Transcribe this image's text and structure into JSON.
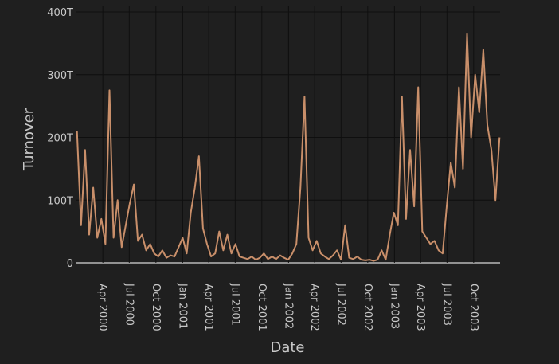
{
  "chart_data": {
    "type": "line",
    "title": "",
    "xlabel": "Date",
    "ylabel": "Turnover",
    "x_ticks": [
      "Apr 2000",
      "Jul 2000",
      "Oct 2000",
      "Jan 2001",
      "Apr 2001",
      "Jul 2001",
      "Oct 2001",
      "Jan 2002",
      "Apr 2002",
      "Jul 2002",
      "Oct 2002",
      "Jan 2003",
      "Apr 2003",
      "Jul 2003",
      "Oct 2003"
    ],
    "y_ticks": [
      "0",
      "100T",
      "200T",
      "300T",
      "400T"
    ],
    "ylim": [
      0,
      400
    ],
    "y_unit": "T",
    "xlim": [
      "2000-01-01",
      "2003-12-31"
    ],
    "grid": true,
    "colors": {
      "background": "#1f1f1f",
      "line": "#c98f6a",
      "grid": "#0f0f0f",
      "text": "#c8c8c8"
    },
    "series": [
      {
        "x": [
          "2000-01-03",
          "2000-01-17",
          "2000-01-31",
          "2000-02-14",
          "2000-02-28",
          "2000-03-13",
          "2000-03-27",
          "2000-04-10",
          "2000-04-24",
          "2000-05-08",
          "2000-05-22",
          "2000-06-05",
          "2000-06-19",
          "2000-07-03",
          "2000-07-17",
          "2000-07-31",
          "2000-08-14",
          "2000-08-28",
          "2000-09-11",
          "2000-09-25",
          "2000-10-09",
          "2000-10-23",
          "2000-11-06",
          "2000-11-20",
          "2000-12-04",
          "2000-12-18",
          "2001-01-01",
          "2001-01-15",
          "2001-01-29",
          "2001-02-12",
          "2001-02-26",
          "2001-03-12",
          "2001-03-26",
          "2001-04-09",
          "2001-04-23",
          "2001-05-07",
          "2001-05-21",
          "2001-06-04",
          "2001-06-18",
          "2001-07-02",
          "2001-07-16",
          "2001-07-30",
          "2001-08-13",
          "2001-08-27",
          "2001-09-10",
          "2001-09-24",
          "2001-10-08",
          "2001-10-22",
          "2001-11-05",
          "2001-11-19",
          "2001-12-03",
          "2001-12-17",
          "2001-12-31",
          "2002-01-14",
          "2002-01-28",
          "2002-02-11",
          "2002-02-25",
          "2002-03-11",
          "2002-03-25",
          "2002-04-08",
          "2002-04-22",
          "2002-05-06",
          "2002-05-20",
          "2002-06-03",
          "2002-06-17",
          "2002-07-01",
          "2002-07-15",
          "2002-07-29",
          "2002-08-12",
          "2002-08-26",
          "2002-09-09",
          "2002-09-23",
          "2002-10-07",
          "2002-10-21",
          "2002-11-04",
          "2002-11-18",
          "2002-12-02",
          "2002-12-16",
          "2002-12-30",
          "2003-01-13",
          "2003-01-27",
          "2003-02-10",
          "2003-02-24",
          "2003-03-10",
          "2003-03-24",
          "2003-04-07",
          "2003-04-21",
          "2003-05-05",
          "2003-05-19",
          "2003-06-02",
          "2003-06-16",
          "2003-06-30",
          "2003-07-14",
          "2003-07-28",
          "2003-08-11",
          "2003-08-25",
          "2003-09-08",
          "2003-09-22",
          "2003-10-06",
          "2003-10-20",
          "2003-11-03",
          "2003-11-17",
          "2003-12-01",
          "2003-12-15",
          "2003-12-29"
        ],
        "y": [
          210,
          60,
          180,
          45,
          120,
          40,
          70,
          30,
          275,
          40,
          100,
          25,
          60,
          95,
          125,
          35,
          45,
          20,
          30,
          15,
          10,
          20,
          8,
          12,
          10,
          25,
          40,
          15,
          80,
          120,
          170,
          55,
          30,
          10,
          15,
          50,
          20,
          45,
          15,
          30,
          10,
          8,
          6,
          10,
          5,
          8,
          15,
          6,
          10,
          6,
          12,
          8,
          5,
          15,
          30,
          120,
          265,
          40,
          20,
          35,
          15,
          10,
          6,
          12,
          20,
          5,
          60,
          8,
          6,
          10,
          5,
          4,
          5,
          3,
          5,
          20,
          5,
          45,
          80,
          60,
          265,
          70,
          180,
          90,
          280,
          50,
          40,
          30,
          35,
          20,
          15,
          90,
          160,
          120,
          280,
          150,
          365,
          200,
          300,
          240,
          340,
          220,
          180,
          100,
          200
        ]
      }
    ]
  }
}
